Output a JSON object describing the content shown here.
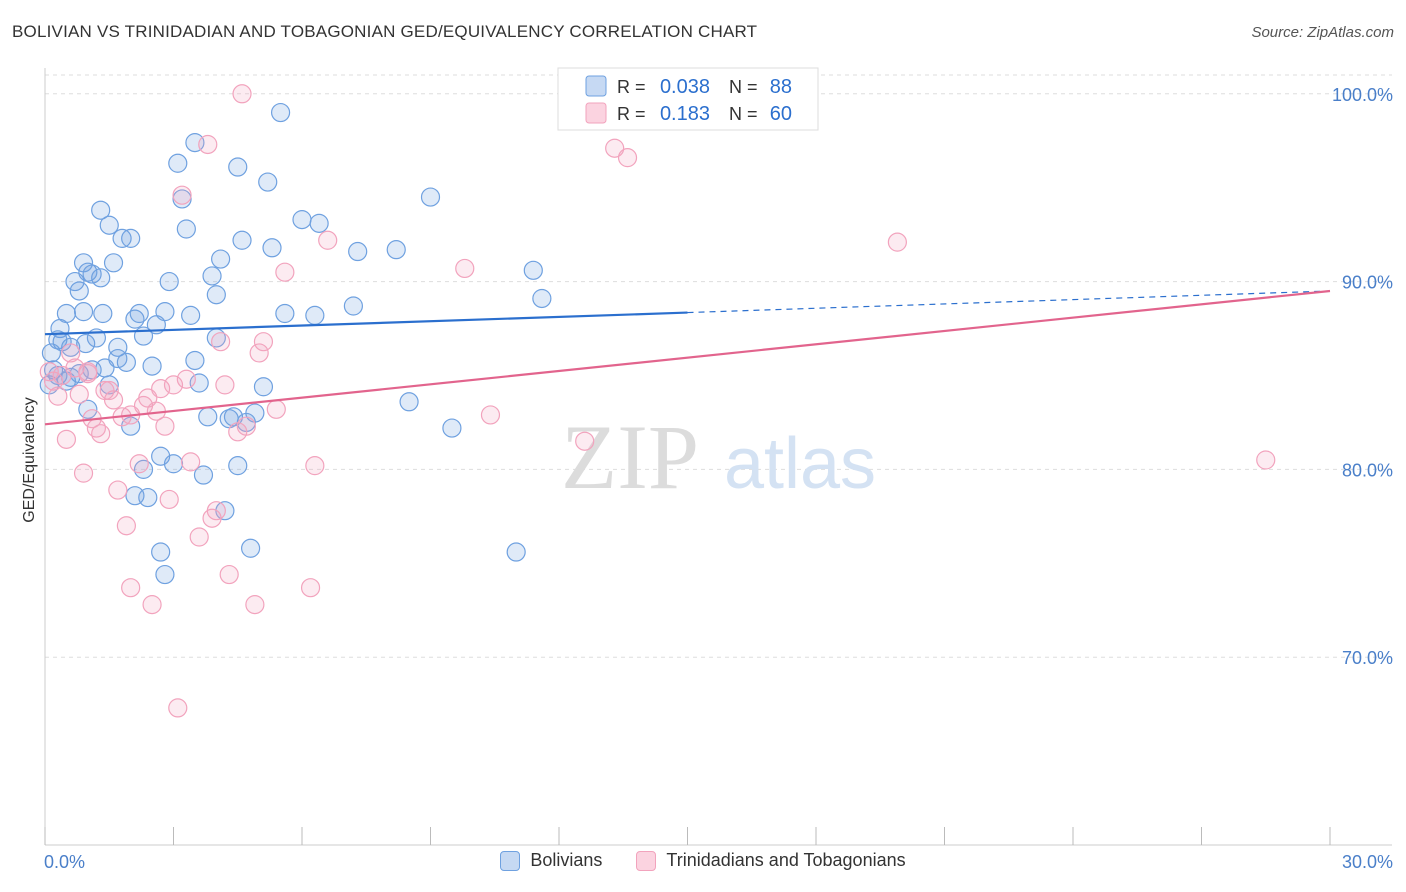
{
  "title": "BOLIVIAN VS TRINIDADIAN AND TOBAGONIAN GED/EQUIVALENCY CORRELATION CHART",
  "source": "Source: ZipAtlas.com",
  "watermark": {
    "zip": "ZIP",
    "atlas": "atlas"
  },
  "chart_data": {
    "type": "scatter",
    "title": "BOLIVIAN VS TRINIDADIAN AND TOBAGONIAN GED/EQUIVALENCY CORRELATION CHART",
    "xlabel": "",
    "ylabel": "GED/Equivalency",
    "xlim": [
      0,
      30
    ],
    "ylim": [
      60,
      101
    ],
    "x_tick_labels": {
      "min": "0.0%",
      "max": "30.0%"
    },
    "y_ticks": [
      {
        "value": 70,
        "label": "70.0%"
      },
      {
        "value": 80,
        "label": "80.0%"
      },
      {
        "value": 90,
        "label": "90.0%"
      },
      {
        "value": 100,
        "label": "100.0%"
      }
    ],
    "grid": true,
    "legend_position": "top-center",
    "series": [
      {
        "name": "Bolivians",
        "color": "#6fa1e0",
        "line_color": "#2b6fce",
        "r_label": "R =",
        "r_value": "0.038",
        "n_label": "N =",
        "n_value": "88",
        "trend": {
          "x_start": 0,
          "y_start": 87.2,
          "x_solid_end": 15.0,
          "x_end": 30,
          "y_end": 89.5
        },
        "points": [
          [
            0.1,
            84.5
          ],
          [
            0.15,
            86.2
          ],
          [
            0.3,
            85.0
          ],
          [
            0.35,
            87.5
          ],
          [
            0.4,
            86.8
          ],
          [
            0.5,
            88.3
          ],
          [
            0.6,
            86.5
          ],
          [
            0.7,
            90.0
          ],
          [
            0.8,
            89.5
          ],
          [
            0.9,
            88.4
          ],
          [
            0.95,
            86.7
          ],
          [
            1.0,
            90.5
          ],
          [
            1.1,
            90.4
          ],
          [
            1.2,
            87.0
          ],
          [
            1.3,
            93.8
          ],
          [
            1.35,
            88.3
          ],
          [
            1.4,
            85.4
          ],
          [
            1.5,
            93.0
          ],
          [
            1.6,
            91.0
          ],
          [
            1.7,
            86.5
          ],
          [
            1.8,
            92.3
          ],
          [
            2.0,
            82.3
          ],
          [
            2.1,
            88.0
          ],
          [
            2.3,
            87.1
          ],
          [
            2.5,
            85.5
          ],
          [
            2.6,
            87.7
          ],
          [
            2.7,
            80.7
          ],
          [
            2.8,
            88.4
          ],
          [
            2.9,
            90.0
          ],
          [
            3.2,
            94.4
          ],
          [
            3.3,
            92.8
          ],
          [
            3.4,
            88.2
          ],
          [
            3.5,
            85.8
          ],
          [
            3.7,
            79.7
          ],
          [
            3.8,
            82.8
          ],
          [
            4.0,
            89.3
          ],
          [
            4.1,
            91.2
          ],
          [
            4.2,
            77.8
          ],
          [
            4.3,
            82.7
          ],
          [
            4.4,
            82.8
          ],
          [
            4.5,
            80.2
          ],
          [
            4.6,
            92.2
          ],
          [
            4.8,
            75.8
          ],
          [
            4.9,
            83.0
          ],
          [
            5.1,
            84.4
          ],
          [
            5.2,
            95.3
          ],
          [
            5.3,
            91.8
          ],
          [
            5.5,
            99.0
          ],
          [
            5.6,
            88.3
          ],
          [
            6.0,
            93.3
          ],
          [
            6.3,
            88.2
          ],
          [
            6.4,
            93.1
          ],
          [
            7.2,
            88.7
          ],
          [
            7.3,
            91.6
          ],
          [
            8.2,
            91.7
          ],
          [
            8.5,
            83.6
          ],
          [
            9.0,
            94.5
          ],
          [
            9.5,
            82.2
          ],
          [
            11.4,
            90.6
          ],
          [
            11.6,
            89.1
          ],
          [
            11.0,
            75.6
          ],
          [
            0.2,
            85.3
          ],
          [
            0.5,
            84.7
          ],
          [
            1.0,
            83.2
          ],
          [
            1.5,
            84.5
          ],
          [
            2.1,
            78.6
          ],
          [
            2.4,
            78.5
          ],
          [
            2.7,
            75.6
          ],
          [
            2.8,
            74.4
          ],
          [
            3.0,
            80.3
          ],
          [
            3.5,
            97.4
          ],
          [
            3.1,
            96.3
          ],
          [
            4.5,
            96.1
          ],
          [
            4.7,
            82.5
          ],
          [
            1.9,
            85.7
          ],
          [
            2.3,
            80.0
          ],
          [
            1.3,
            90.2
          ],
          [
            0.6,
            84.9
          ],
          [
            0.8,
            85.1
          ],
          [
            4.0,
            87.0
          ],
          [
            3.9,
            90.3
          ],
          [
            0.3,
            86.9
          ],
          [
            1.1,
            85.3
          ],
          [
            2.2,
            88.3
          ],
          [
            0.9,
            91.0
          ],
          [
            2.0,
            92.3
          ],
          [
            3.6,
            84.6
          ],
          [
            1.7,
            85.9
          ]
        ]
      },
      {
        "name": "Trinidadians and Tobagonians",
        "color": "#f2a3bd",
        "line_color": "#e2648d",
        "r_label": "R =",
        "r_value": "0.183",
        "n_label": "N =",
        "n_value": "60",
        "trend": {
          "x_start": 0,
          "y_start": 82.4,
          "x_solid_end": 30,
          "x_end": 30,
          "y_end": 89.5
        },
        "points": [
          [
            0.1,
            85.2
          ],
          [
            0.2,
            84.7
          ],
          [
            0.4,
            85.0
          ],
          [
            0.5,
            81.6
          ],
          [
            0.6,
            86.2
          ],
          [
            0.7,
            85.4
          ],
          [
            0.8,
            84.0
          ],
          [
            0.9,
            79.8
          ],
          [
            1.0,
            85.2
          ],
          [
            1.1,
            82.7
          ],
          [
            1.2,
            82.2
          ],
          [
            1.3,
            81.9
          ],
          [
            1.4,
            84.2
          ],
          [
            1.5,
            84.2
          ],
          [
            1.6,
            83.7
          ],
          [
            1.7,
            78.9
          ],
          [
            1.8,
            82.8
          ],
          [
            1.9,
            77.0
          ],
          [
            2.0,
            73.7
          ],
          [
            2.2,
            80.3
          ],
          [
            2.3,
            83.4
          ],
          [
            2.4,
            83.8
          ],
          [
            2.5,
            72.8
          ],
          [
            2.6,
            83.1
          ],
          [
            2.8,
            82.3
          ],
          [
            2.9,
            78.4
          ],
          [
            3.0,
            84.5
          ],
          [
            3.1,
            67.3
          ],
          [
            3.2,
            94.6
          ],
          [
            3.3,
            84.8
          ],
          [
            3.4,
            80.4
          ],
          [
            3.6,
            76.4
          ],
          [
            3.8,
            97.3
          ],
          [
            3.9,
            77.4
          ],
          [
            4.0,
            77.8
          ],
          [
            4.1,
            86.8
          ],
          [
            4.2,
            84.5
          ],
          [
            4.3,
            74.4
          ],
          [
            4.5,
            82.0
          ],
          [
            4.6,
            100.0
          ],
          [
            4.7,
            82.3
          ],
          [
            4.9,
            72.8
          ],
          [
            5.0,
            86.2
          ],
          [
            5.1,
            86.8
          ],
          [
            5.4,
            83.2
          ],
          [
            5.6,
            90.5
          ],
          [
            6.2,
            73.7
          ],
          [
            6.3,
            80.2
          ],
          [
            6.6,
            92.2
          ],
          [
            9.8,
            90.7
          ],
          [
            10.4,
            82.9
          ],
          [
            12.6,
            81.5
          ],
          [
            13.3,
            97.1
          ],
          [
            13.6,
            96.6
          ],
          [
            19.9,
            92.1
          ],
          [
            28.5,
            80.5
          ],
          [
            0.3,
            83.9
          ],
          [
            1.0,
            85.1
          ],
          [
            2.7,
            84.3
          ],
          [
            2.0,
            82.9
          ]
        ]
      }
    ]
  }
}
